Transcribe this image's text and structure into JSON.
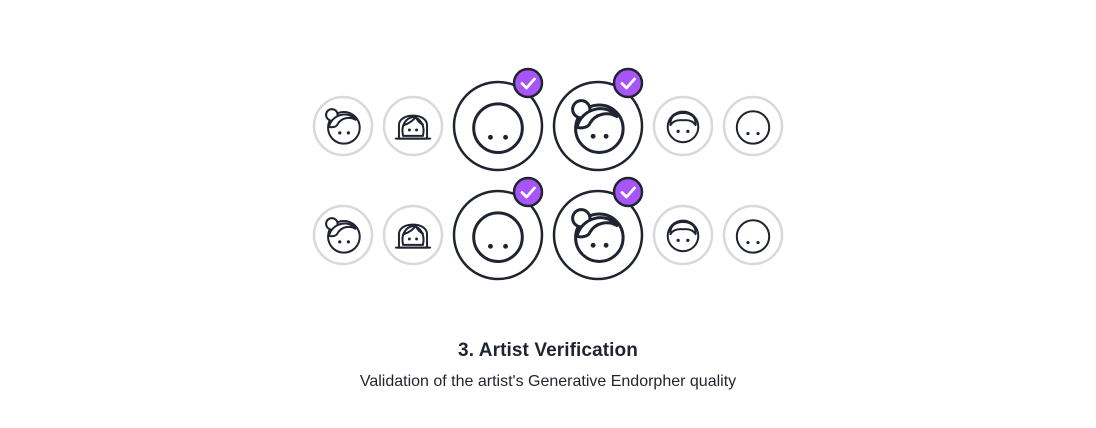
{
  "colors": {
    "accent": "#a855f7",
    "ink": "#1f2430",
    "ring_small": "#d9d9dc"
  },
  "avatar_rows": [
    {
      "avatars": [
        {
          "icon": "girl-bun-avatar-icon",
          "size": "small",
          "verified": false
        },
        {
          "icon": "girl-long-hair-avatar-icon",
          "size": "small",
          "verified": false
        },
        {
          "icon": "boy-buzzcut-avatar-icon",
          "size": "large",
          "verified": true
        },
        {
          "icon": "girl-bun-avatar-icon",
          "size": "large",
          "verified": true
        },
        {
          "icon": "boy-short-hair-avatar-icon",
          "size": "small",
          "verified": false
        },
        {
          "icon": "boy-buzzcut-avatar-icon",
          "size": "small",
          "verified": false
        }
      ]
    },
    {
      "avatars": [
        {
          "icon": "girl-bun-avatar-icon",
          "size": "small",
          "verified": false
        },
        {
          "icon": "girl-long-hair-avatar-icon",
          "size": "small",
          "verified": false
        },
        {
          "icon": "boy-buzzcut-avatar-icon",
          "size": "large",
          "verified": true
        },
        {
          "icon": "girl-bun-avatar-icon",
          "size": "large",
          "verified": true
        },
        {
          "icon": "boy-short-hair-avatar-icon",
          "size": "small",
          "verified": false
        },
        {
          "icon": "boy-buzzcut-avatar-icon",
          "size": "small",
          "verified": false
        }
      ]
    }
  ],
  "step": {
    "title": "3. Artist Verification",
    "description": "Validation of the artist's Generative Endorpher quality"
  }
}
